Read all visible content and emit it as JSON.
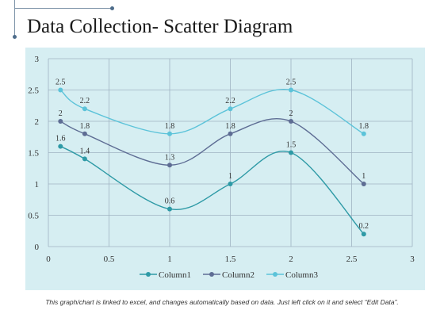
{
  "title": "Data Collection- Scatter Diagram",
  "footnote": "This graph/chart is linked to excel, and changes automatically based on data. Just left click on it and select “Edit Data”.",
  "colors": {
    "background": "#d6eef2",
    "column1": "#2e9aa6",
    "column2": "#5e6d94",
    "column3": "#5cc3d9",
    "grid": "#9fb3c2"
  },
  "chart_data": {
    "type": "scatter",
    "xlim": [
      0,
      3
    ],
    "ylim": [
      0,
      3
    ],
    "xticks": [
      "0",
      "0.5",
      "1",
      "1.5",
      "2",
      "2.5",
      "3"
    ],
    "yticks": [
      "0",
      "0.5",
      "1",
      "1.5",
      "2",
      "2.5",
      "3"
    ],
    "grid": true,
    "legend_position": "bottom",
    "smooth": true,
    "series": [
      {
        "name": "Column1",
        "color": "#2e9aa6",
        "points": [
          {
            "x": 0.1,
            "y": 1.6,
            "label": "1.6"
          },
          {
            "x": 0.3,
            "y": 1.4,
            "label": "1.4"
          },
          {
            "x": 1.0,
            "y": 0.6,
            "label": "0.6"
          },
          {
            "x": 1.5,
            "y": 1.0,
            "label": "1"
          },
          {
            "x": 2.0,
            "y": 1.5,
            "label": "1.5"
          },
          {
            "x": 2.6,
            "y": 0.2,
            "label": "0.2"
          }
        ]
      },
      {
        "name": "Column2",
        "color": "#5e6d94",
        "points": [
          {
            "x": 0.1,
            "y": 2.0,
            "label": "2"
          },
          {
            "x": 0.3,
            "y": 1.8,
            "label": "1.8"
          },
          {
            "x": 1.0,
            "y": 1.3,
            "label": "1.3"
          },
          {
            "x": 1.5,
            "y": 1.8,
            "label": "1.8"
          },
          {
            "x": 2.0,
            "y": 2.0,
            "label": "2"
          },
          {
            "x": 2.6,
            "y": 1.0,
            "label": "1"
          }
        ]
      },
      {
        "name": "Column3",
        "color": "#5cc3d9",
        "points": [
          {
            "x": 0.1,
            "y": 2.5,
            "label": "2.5"
          },
          {
            "x": 0.3,
            "y": 2.2,
            "label": "2.2"
          },
          {
            "x": 1.0,
            "y": 1.8,
            "label": "1.8"
          },
          {
            "x": 1.5,
            "y": 2.2,
            "label": "2.2"
          },
          {
            "x": 2.0,
            "y": 2.5,
            "label": "2.5"
          },
          {
            "x": 2.6,
            "y": 1.8,
            "label": "1.8"
          }
        ]
      }
    ]
  }
}
